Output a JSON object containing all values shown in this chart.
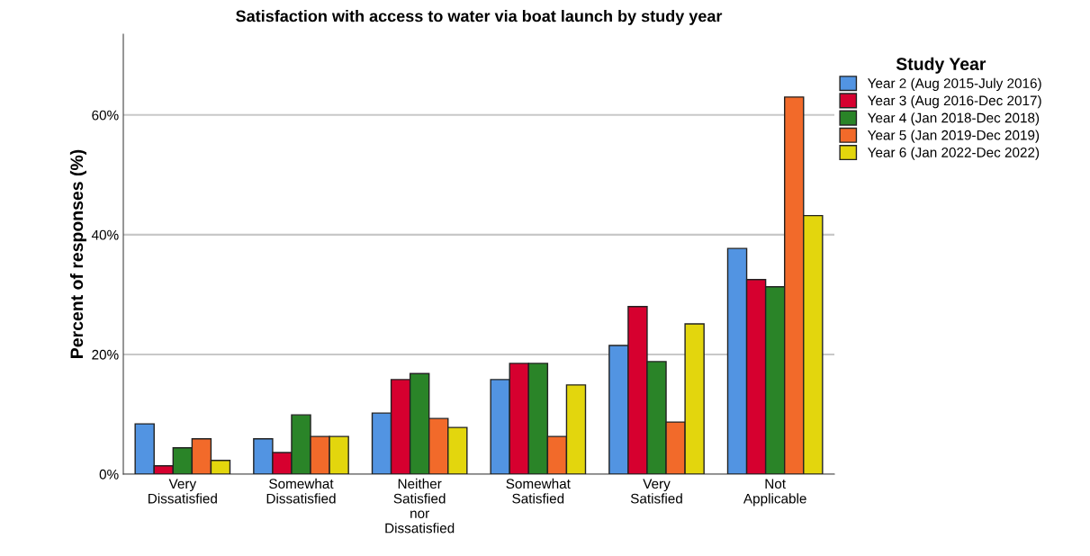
{
  "chart_data": {
    "type": "bar",
    "title": "Satisfaction with access to water via boat launch by study year",
    "ylabel": "Percent of responses (%)",
    "legend_title": "Study Year",
    "categories": [
      "Very\nDissatisfied",
      "Somewhat\nDissatisfied",
      "Neither\nSatisfied\nnor\nDissatisfied",
      "Somewhat\nSatisfied",
      "Very\nSatisfied",
      "Not\nApplicable"
    ],
    "series": [
      {
        "name": "Year 2 (Aug 2015-July 2016)",
        "color": "#5294e2",
        "values": [
          8.4,
          5.9,
          10.2,
          15.8,
          21.5,
          37.7
        ]
      },
      {
        "name": "Year 3 (Aug 2016-Dec 2017)",
        "color": "#d6002f",
        "values": [
          1.4,
          3.6,
          15.8,
          18.5,
          28.0,
          32.5
        ]
      },
      {
        "name": "Year 4 (Jan 2018-Dec 2018)",
        "color": "#2a8428",
        "values": [
          4.4,
          9.9,
          16.8,
          18.5,
          18.8,
          31.3
        ]
      },
      {
        "name": "Year 5 (Jan 2019-Dec 2019)",
        "color": "#f26a2a",
        "values": [
          5.9,
          6.3,
          9.3,
          6.3,
          8.7,
          63.0
        ]
      },
      {
        "name": "Year 6 (Jan 2022-Dec 2022)",
        "color": "#e3d60d",
        "values": [
          2.3,
          6.3,
          7.8,
          14.9,
          25.1,
          43.2
        ]
      }
    ],
    "ylim": [
      0,
      73.5
    ],
    "yticks": [
      {
        "value": 0,
        "label": "0%"
      },
      {
        "value": 20,
        "label": "20%"
      },
      {
        "value": 40,
        "label": "40%"
      },
      {
        "value": 60,
        "label": "60%"
      }
    ],
    "grid": "y",
    "legend": "right"
  }
}
